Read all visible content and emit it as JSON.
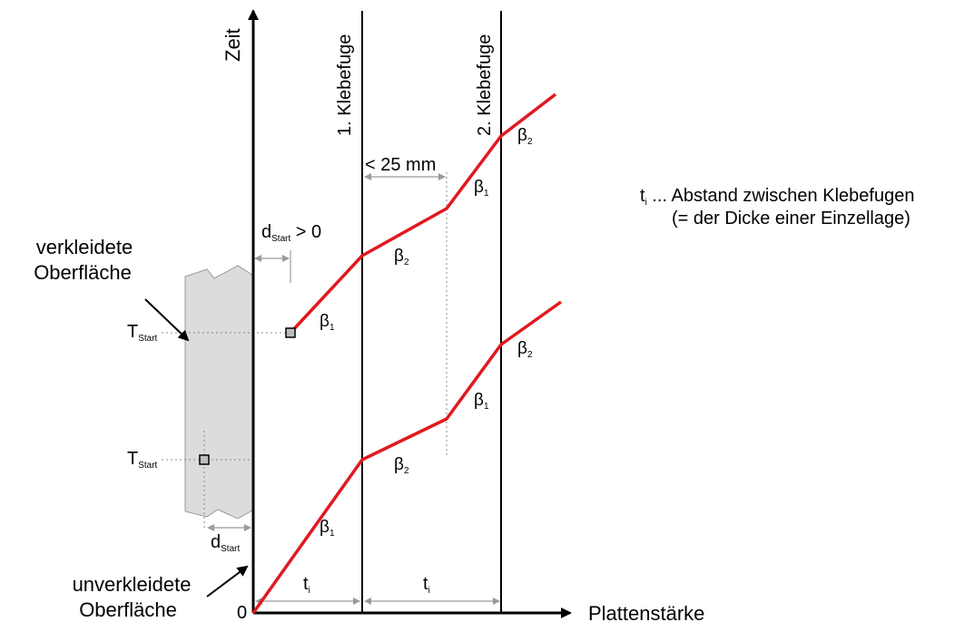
{
  "labels": {
    "y_axis": "Zeit",
    "x_axis": "Plattenstärke",
    "origin": "0",
    "joint_1": "1. Klebefuge",
    "joint_2": "2. Klebefuge",
    "less_25": "< 25 mm",
    "dstart_gt0_main": "d",
    "dstart_gt0_sub": "Start",
    "dstart_gt0_tail": " > 0",
    "dstart_main": "d",
    "dstart_sub": "Start",
    "tstart_upper_main": "T",
    "tstart_upper_sub": "Start",
    "tstart_lower_main": "T",
    "tstart_lower_sub": "Start",
    "clad_line1": "verkleidete",
    "clad_line2": "Oberfläche",
    "unclad_line1": "unverkleidete",
    "unclad_line2": "Oberfläche",
    "ti_left_main": "t",
    "ti_left_sub": "i",
    "ti_right_main": "t",
    "ti_right_sub": "i",
    "legend_line1_main": "t",
    "legend_line1_sub": "i",
    "legend_line1_tail": " ... Abstand zwischen Klebefugen",
    "legend_line2": "(= der Dicke einer Einzellage)",
    "beta": "β",
    "beta_sub_1": "1",
    "beta_sub_2": "2"
  },
  "colors": {
    "curve": "#e0191f",
    "axis": "#000000",
    "cladding_fill": "#dcdcdc",
    "cladding_edge": "#9a9a9a",
    "marker_fill": "#bdbdbd"
  }
}
